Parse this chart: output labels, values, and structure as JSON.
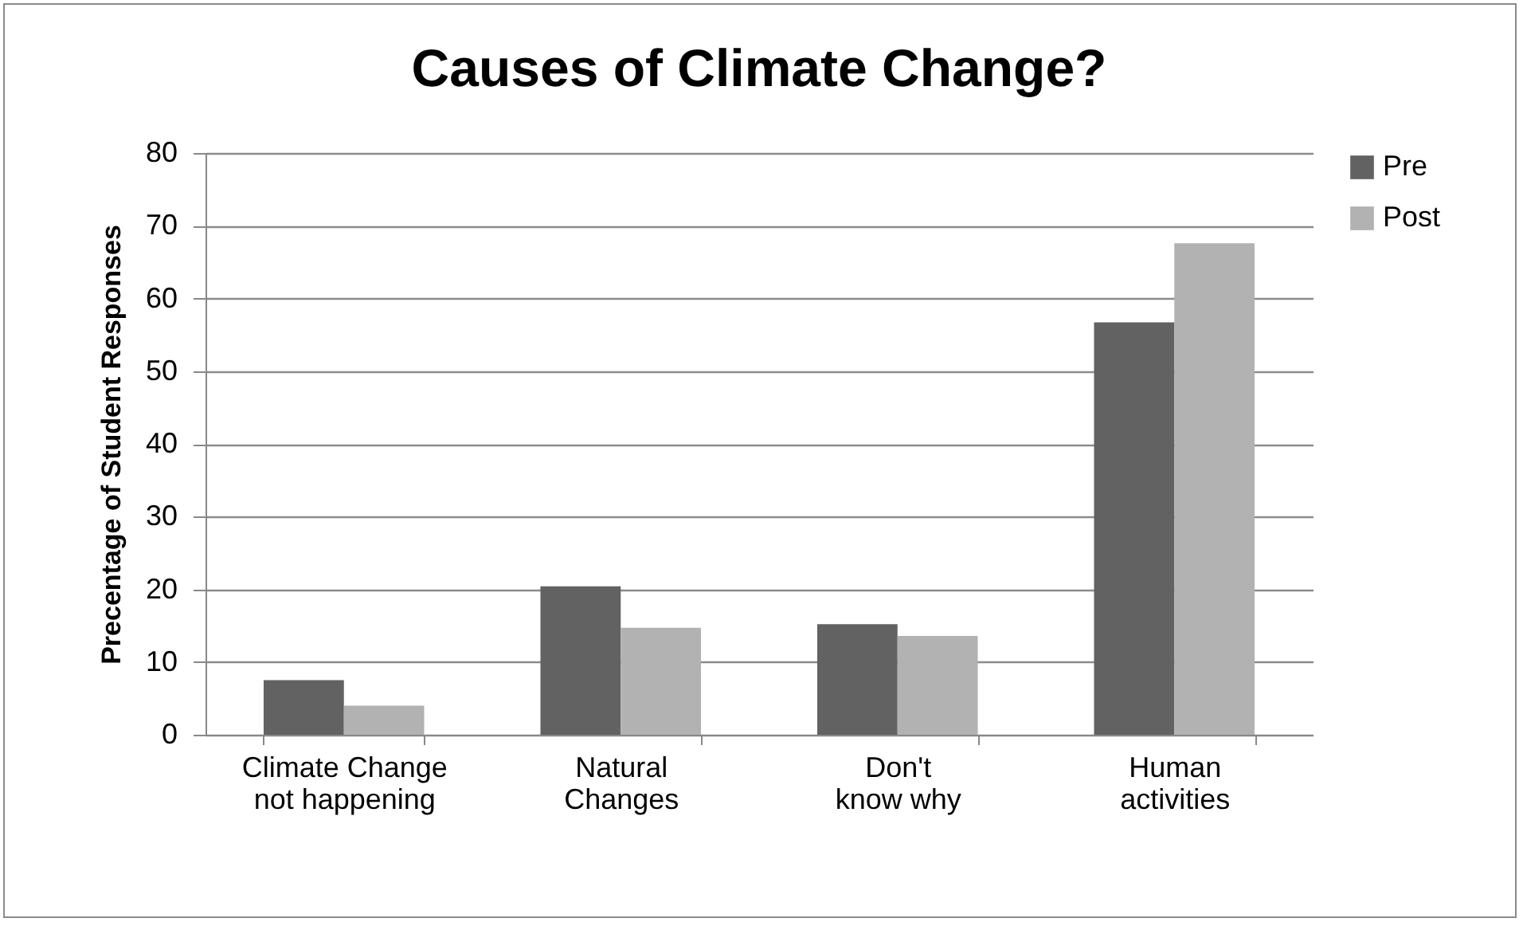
{
  "chart_data": {
    "type": "bar",
    "title": "Causes of Climate Change?",
    "ylabel": "Precentage of Student Responses",
    "categories": [
      "Climate Change not happening",
      "Natural Changes",
      "Don't know why",
      "Human activities"
    ],
    "series": [
      {
        "name": "Pre",
        "color": "#626262",
        "values": [
          7.5,
          20.4,
          15.2,
          56.7
        ]
      },
      {
        "name": "Post",
        "color": "#b2b2b2",
        "values": [
          4.0,
          14.7,
          13.6,
          67.6
        ]
      }
    ],
    "ylim": [
      0,
      80
    ],
    "yticks": [
      0,
      10,
      20,
      30,
      40,
      50,
      60,
      70,
      80
    ],
    "grid": "y",
    "legend": "right"
  }
}
